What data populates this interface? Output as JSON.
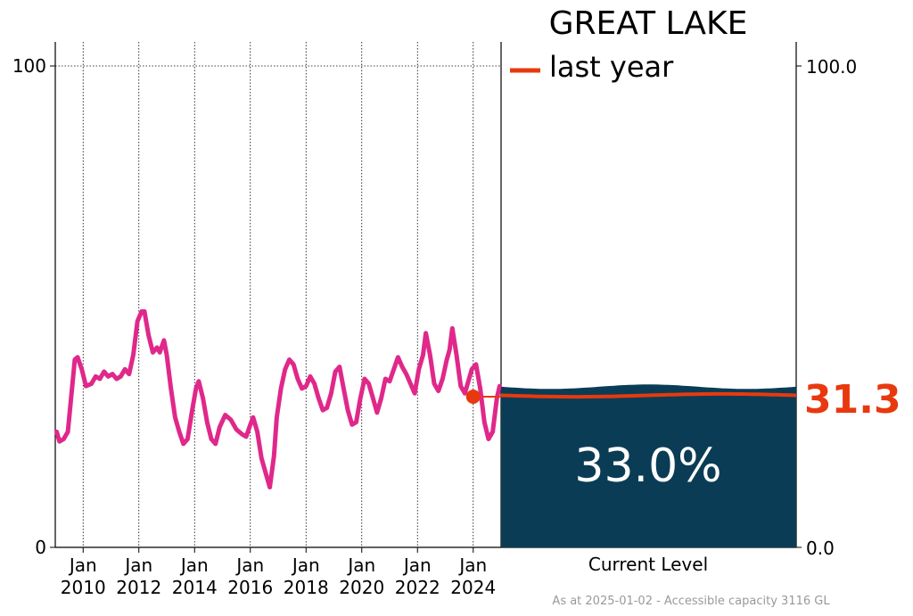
{
  "chart_data": {
    "type": "line",
    "title": "GREAT LAKE",
    "left_axis": {
      "ylim": [
        0,
        100
      ],
      "ticks": [
        "0",
        "100"
      ]
    },
    "right_axis": {
      "ticks": [
        "0.0",
        "100.0"
      ]
    },
    "x_ticks": [
      "Jan\n2010",
      "Jan\n2012",
      "Jan\n2014",
      "Jan\n2016",
      "Jan\n2018",
      "Jan\n2020",
      "Jan\n2022",
      "Jan\n2024"
    ],
    "x_tick_years": [
      2010,
      2012,
      2014,
      2016,
      2018,
      2020,
      2022,
      2024
    ],
    "x_range": [
      2009,
      2025.0
    ],
    "series": [
      {
        "color": "#e0288a",
        "points": [
          [
            2009.05,
            24
          ],
          [
            2009.15,
            22
          ],
          [
            2009.3,
            22.5
          ],
          [
            2009.45,
            24
          ],
          [
            2009.55,
            30
          ],
          [
            2009.7,
            39
          ],
          [
            2009.8,
            39.5
          ],
          [
            2009.95,
            37
          ],
          [
            2010.1,
            33.5
          ],
          [
            2010.3,
            34
          ],
          [
            2010.45,
            35.5
          ],
          [
            2010.6,
            35
          ],
          [
            2010.75,
            36.5
          ],
          [
            2010.9,
            35.5
          ],
          [
            2011.05,
            36
          ],
          [
            2011.2,
            35
          ],
          [
            2011.35,
            35.5
          ],
          [
            2011.5,
            37
          ],
          [
            2011.65,
            36
          ],
          [
            2011.8,
            40
          ],
          [
            2011.95,
            47
          ],
          [
            2012.1,
            49
          ],
          [
            2012.2,
            49
          ],
          [
            2012.35,
            44
          ],
          [
            2012.5,
            40.5
          ],
          [
            2012.65,
            41.5
          ],
          [
            2012.75,
            40.5
          ],
          [
            2012.9,
            43
          ],
          [
            2013.0,
            40
          ],
          [
            2013.15,
            33
          ],
          [
            2013.3,
            27
          ],
          [
            2013.45,
            24
          ],
          [
            2013.6,
            21.5
          ],
          [
            2013.75,
            22.5
          ],
          [
            2013.9,
            28
          ],
          [
            2014.05,
            33
          ],
          [
            2014.15,
            34.5
          ],
          [
            2014.3,
            31
          ],
          [
            2014.45,
            26
          ],
          [
            2014.6,
            22.5
          ],
          [
            2014.75,
            21.5
          ],
          [
            2014.9,
            25
          ],
          [
            2015.1,
            27.5
          ],
          [
            2015.3,
            26.5
          ],
          [
            2015.5,
            24.5
          ],
          [
            2015.7,
            23.5
          ],
          [
            2015.85,
            23
          ],
          [
            2016.0,
            25.5
          ],
          [
            2016.1,
            27
          ],
          [
            2016.25,
            24
          ],
          [
            2016.4,
            18.5
          ],
          [
            2016.55,
            15.5
          ],
          [
            2016.7,
            12.5
          ],
          [
            2016.85,
            19
          ],
          [
            2016.95,
            27
          ],
          [
            2017.1,
            33
          ],
          [
            2017.25,
            37
          ],
          [
            2017.4,
            39
          ],
          [
            2017.55,
            38
          ],
          [
            2017.7,
            35
          ],
          [
            2017.85,
            33
          ],
          [
            2018.0,
            33.5
          ],
          [
            2018.15,
            35.5
          ],
          [
            2018.3,
            34
          ],
          [
            2018.45,
            31
          ],
          [
            2018.6,
            28.5
          ],
          [
            2018.75,
            29
          ],
          [
            2018.9,
            32
          ],
          [
            2019.05,
            36.5
          ],
          [
            2019.2,
            37.5
          ],
          [
            2019.35,
            33
          ],
          [
            2019.5,
            28.5
          ],
          [
            2019.65,
            25.5
          ],
          [
            2019.8,
            26
          ],
          [
            2019.95,
            31
          ],
          [
            2020.1,
            35
          ],
          [
            2020.25,
            34
          ],
          [
            2020.4,
            31
          ],
          [
            2020.55,
            28
          ],
          [
            2020.7,
            31
          ],
          [
            2020.85,
            35
          ],
          [
            2021.0,
            34.5
          ],
          [
            2021.15,
            37
          ],
          [
            2021.3,
            39.5
          ],
          [
            2021.45,
            37.5
          ],
          [
            2021.6,
            36
          ],
          [
            2021.75,
            34
          ],
          [
            2021.9,
            32
          ],
          [
            2022.05,
            37
          ],
          [
            2022.2,
            40
          ],
          [
            2022.3,
            44.5
          ],
          [
            2022.45,
            40
          ],
          [
            2022.6,
            34
          ],
          [
            2022.75,
            32.5
          ],
          [
            2022.9,
            35
          ],
          [
            2023.05,
            39
          ],
          [
            2023.15,
            41
          ],
          [
            2023.25,
            45.5
          ],
          [
            2023.4,
            40
          ],
          [
            2023.55,
            33.5
          ],
          [
            2023.7,
            32
          ],
          [
            2023.8,
            34
          ],
          [
            2023.95,
            37
          ],
          [
            2024.1,
            38
          ],
          [
            2024.25,
            33
          ],
          [
            2024.4,
            26
          ],
          [
            2024.55,
            22.5
          ],
          [
            2024.7,
            24
          ],
          [
            2024.85,
            31
          ],
          [
            2024.95,
            33.5
          ]
        ]
      }
    ],
    "last_year_marker": {
      "x": 2024.0,
      "value": 31.3,
      "color": "#e8390e"
    },
    "current_panel": {
      "label": "Current Level",
      "percent_value": 33.0,
      "percent_text": "33.0%",
      "fill_color": "#0a3d55",
      "last_year_value": 31.3,
      "last_year_text": "31.3",
      "last_year_color": "#e8390e"
    },
    "legend": {
      "label": "last year",
      "color": "#e8390e",
      "placement": "top"
    },
    "grid": true,
    "footer": "As at 2025-01-02 - Accessible capacity 3116 GL"
  }
}
